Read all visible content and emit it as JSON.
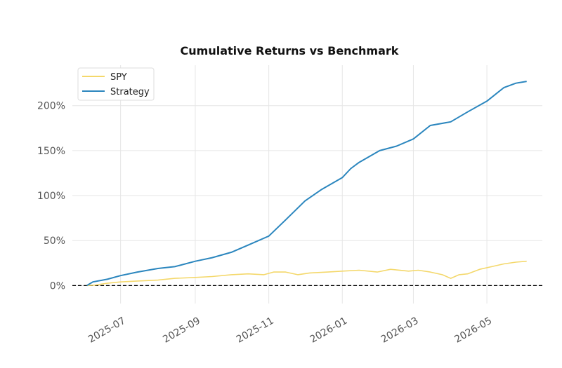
{
  "chart_data": {
    "type": "line",
    "title": "Cumulative Returns vs Benchmark",
    "xlabel": "",
    "ylabel": "",
    "x_ticks": [
      "2025-07",
      "2025-09",
      "2025-11",
      "2026-01",
      "2026-03",
      "2026-05"
    ],
    "y_ticks": [
      "0%",
      "50%",
      "100%",
      "150%",
      "200%"
    ],
    "x_range": [
      "2025-05-22",
      "2026-06-16"
    ],
    "ylim": [
      -20,
      245
    ],
    "grid": true,
    "legend_position": "top-left",
    "zero_line": {
      "style": "dashed",
      "color": "#000000"
    },
    "series": [
      {
        "name": "SPY",
        "color": "#f4d86b",
        "points": [
          [
            "2025-06-03",
            0
          ],
          [
            "2025-06-10",
            0.5
          ],
          [
            "2025-06-20",
            2.5
          ],
          [
            "2025-07-01",
            4
          ],
          [
            "2025-07-15",
            5
          ],
          [
            "2025-08-01",
            6
          ],
          [
            "2025-08-15",
            8
          ],
          [
            "2025-09-01",
            9
          ],
          [
            "2025-09-15",
            10
          ],
          [
            "2025-10-01",
            12
          ],
          [
            "2025-10-15",
            13
          ],
          [
            "2025-10-28",
            12
          ],
          [
            "2025-11-05",
            15
          ],
          [
            "2025-11-15",
            15
          ],
          [
            "2025-11-25",
            12
          ],
          [
            "2025-12-05",
            14
          ],
          [
            "2025-12-20",
            15
          ],
          [
            "2026-01-01",
            16
          ],
          [
            "2026-01-15",
            17
          ],
          [
            "2026-01-30",
            15
          ],
          [
            "2026-02-10",
            18
          ],
          [
            "2026-02-25",
            16
          ],
          [
            "2026-03-05",
            17
          ],
          [
            "2026-03-15",
            15
          ],
          [
            "2026-03-25",
            12
          ],
          [
            "2026-04-01",
            8
          ],
          [
            "2026-04-08",
            12
          ],
          [
            "2026-04-15",
            13
          ],
          [
            "2026-04-25",
            18
          ],
          [
            "2026-05-05",
            21
          ],
          [
            "2026-05-15",
            24
          ],
          [
            "2026-05-25",
            26
          ],
          [
            "2026-06-03",
            27
          ]
        ]
      },
      {
        "name": "Strategy",
        "color": "#2b86be",
        "points": [
          [
            "2025-06-03",
            0
          ],
          [
            "2025-06-08",
            4
          ],
          [
            "2025-06-20",
            7
          ],
          [
            "2025-07-01",
            11
          ],
          [
            "2025-07-15",
            15
          ],
          [
            "2025-08-01",
            19
          ],
          [
            "2025-08-15",
            21
          ],
          [
            "2025-09-01",
            27
          ],
          [
            "2025-09-15",
            31
          ],
          [
            "2025-10-01",
            37
          ],
          [
            "2025-10-15",
            45
          ],
          [
            "2025-11-01",
            55
          ],
          [
            "2025-11-15",
            73
          ],
          [
            "2025-12-01",
            94
          ],
          [
            "2025-12-15",
            107
          ],
          [
            "2026-01-01",
            120
          ],
          [
            "2026-01-08",
            130
          ],
          [
            "2026-01-15",
            137
          ],
          [
            "2026-02-01",
            150
          ],
          [
            "2026-02-15",
            155
          ],
          [
            "2026-03-01",
            163
          ],
          [
            "2026-03-15",
            178
          ],
          [
            "2026-04-01",
            182
          ],
          [
            "2026-04-15",
            193
          ],
          [
            "2026-05-01",
            205
          ],
          [
            "2026-05-15",
            220
          ],
          [
            "2026-05-25",
            225
          ],
          [
            "2026-06-03",
            227
          ]
        ]
      }
    ]
  }
}
